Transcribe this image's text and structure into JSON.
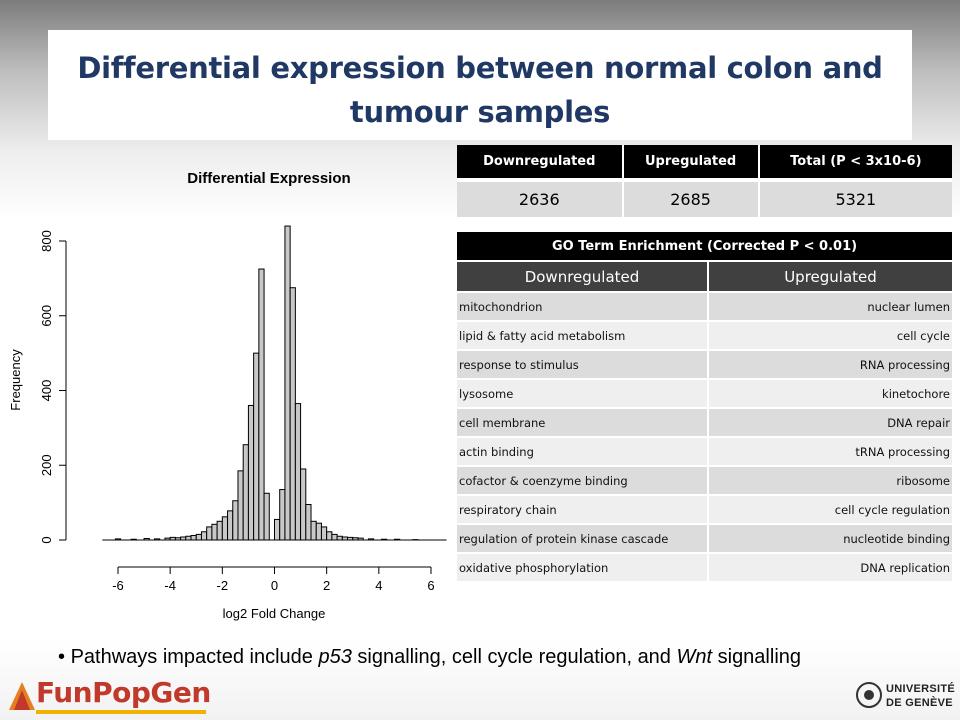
{
  "slide": {
    "title": "Differential expression between normal colon and tumour samples"
  },
  "summary_table": {
    "headers": [
      "Downregulated",
      "Upregulated",
      "Total (P < 3x10-6)"
    ],
    "values": [
      "2636",
      "2685",
      "5321"
    ]
  },
  "go_table": {
    "caption": "GO Term Enrichment (Corrected P < 0.01)",
    "col_down": "Downregulated",
    "col_up": "Upregulated",
    "rows": [
      {
        "down": "mitochondrion",
        "up": "nuclear lumen"
      },
      {
        "down": "lipid & fatty acid metabolism",
        "up": "cell cycle"
      },
      {
        "down": "response to stimulus",
        "up": "RNA processing"
      },
      {
        "down": "lysosome",
        "up": "kinetochore"
      },
      {
        "down": "cell membrane",
        "up": "DNA repair"
      },
      {
        "down": "actin binding",
        "up": "tRNA processing"
      },
      {
        "down": "cofactor & coenzyme binding",
        "up": "ribosome"
      },
      {
        "down": "respiratory chain",
        "up": "cell cycle regulation"
      },
      {
        "down": "regulation of protein kinase cascade",
        "up": "nucleotide binding"
      },
      {
        "down": "oxidative phosphorylation",
        "up": "DNA replication"
      }
    ]
  },
  "bullet": {
    "prefix": "Pathways impacted include ",
    "p53": "p53",
    "mid": " signalling, cell cycle regulation, and ",
    "wnt": "Wnt",
    "suffix": " signalling"
  },
  "logos": {
    "left": "FunPopGen",
    "right_line1": "UNIVERSITÉ",
    "right_line2": "DE GENÈVE"
  },
  "chart_data": {
    "type": "bar",
    "title": "Differential Expression",
    "xlabel": "log2 Fold Change",
    "ylabel": "Frequency",
    "xlim": [
      -6.5,
      6.5
    ],
    "ylim": [
      0,
      840
    ],
    "xticks": [
      -6,
      -4,
      -2,
      0,
      2,
      4,
      6
    ],
    "yticks": [
      0,
      200,
      400,
      600,
      800
    ],
    "bin_width": 0.2,
    "bins_left": [
      -4.2,
      -4.0,
      -3.8,
      -3.6,
      -3.4,
      -3.2,
      -3.0,
      -2.8,
      -2.6,
      -2.4,
      -2.2,
      -2.0,
      -1.8,
      -1.6,
      -1.4,
      -1.2,
      -1.0,
      -0.8,
      -0.6,
      -0.4,
      0.0,
      0.2,
      0.4,
      0.6,
      0.8,
      1.0,
      1.2,
      1.4,
      1.6,
      1.8,
      2.0,
      2.2,
      2.4,
      2.6,
      2.8,
      3.0,
      3.2
    ],
    "values": [
      5,
      7,
      6,
      8,
      10,
      12,
      15,
      22,
      35,
      42,
      50,
      62,
      78,
      105,
      185,
      255,
      360,
      500,
      725,
      125,
      55,
      135,
      840,
      675,
      365,
      190,
      95,
      50,
      45,
      35,
      22,
      15,
      10,
      8,
      7,
      6,
      5
    ],
    "tail_points": [
      {
        "x": -6.1,
        "y": 3
      },
      {
        "x": -5.5,
        "y": 2
      },
      {
        "x": -5.0,
        "y": 4
      },
      {
        "x": -4.6,
        "y": 3
      },
      {
        "x": 3.6,
        "y": 3
      },
      {
        "x": 4.1,
        "y": 2
      },
      {
        "x": 4.6,
        "y": 2
      },
      {
        "x": 5.3,
        "y": 1
      }
    ],
    "bar_color": "#c8c8c8"
  }
}
